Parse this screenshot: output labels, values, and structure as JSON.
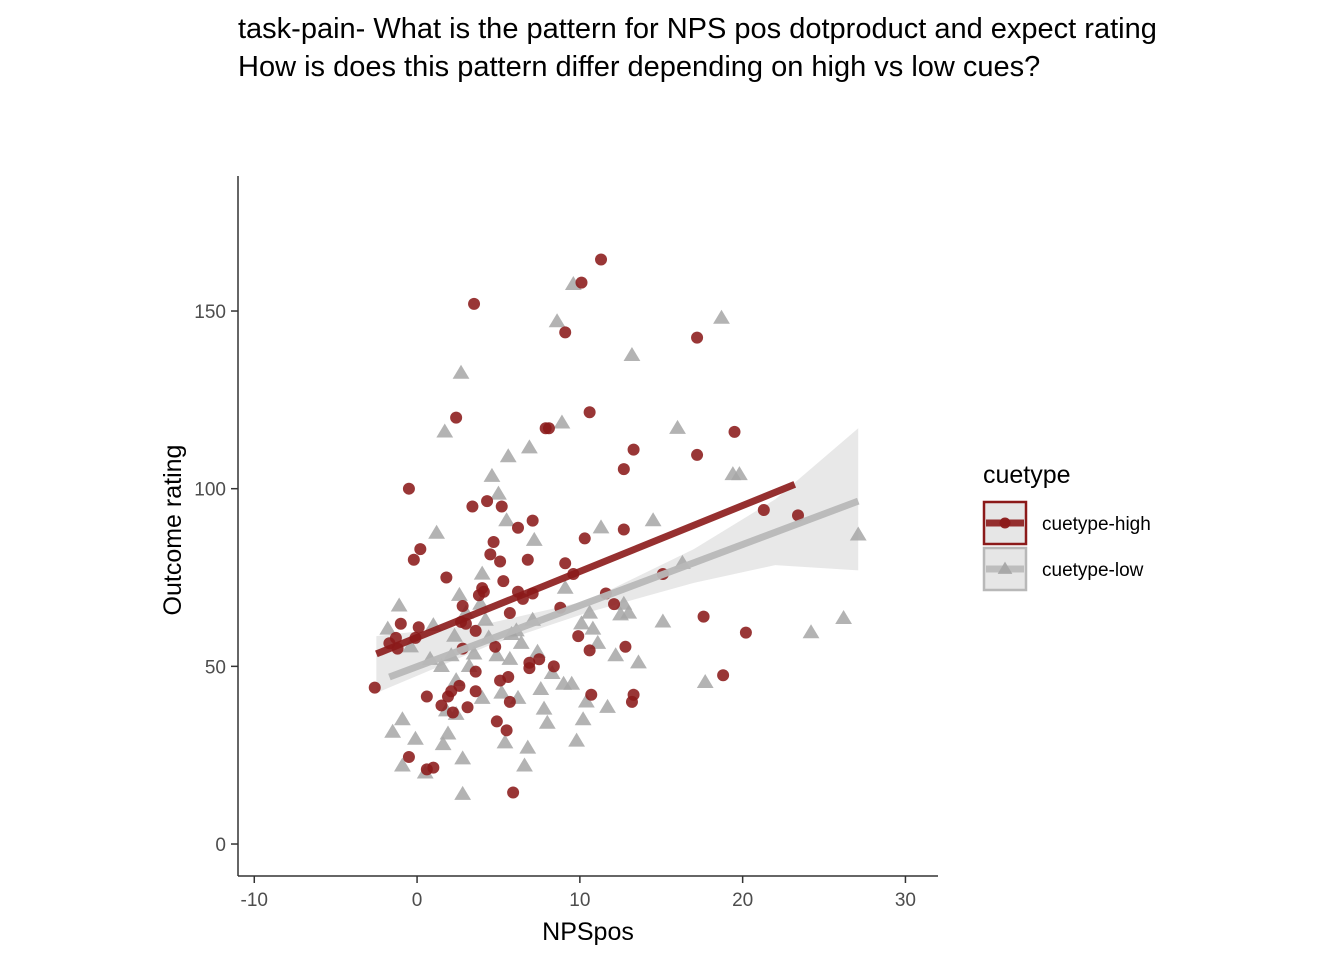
{
  "title_lines": [
    "task-pain- What is the pattern for NPS pos dotproduct and expect rating",
    "How is does this pattern differ depending on high vs low cues?"
  ],
  "chart_data": {
    "type": "scatter",
    "xlabel": "NPSpos",
    "ylabel": "Outcome rating",
    "xlim": [
      -11,
      32
    ],
    "ylim": [
      -9,
      188
    ],
    "xticks": [
      -10,
      0,
      10,
      20,
      30
    ],
    "yticks": [
      0,
      50,
      100,
      150
    ],
    "xtick_labels": [
      "-10",
      "0",
      "10",
      "20",
      "30"
    ],
    "ytick_labels": [
      "0",
      "50",
      "100",
      "150"
    ],
    "grid": false,
    "legend": {
      "title": "cuetype",
      "position": "right",
      "entries": [
        "cuetype-high",
        "cuetype-low"
      ]
    },
    "series": [
      {
        "name": "cuetype-high",
        "marker": "circle",
        "color": "#8B1A1A",
        "trend": {
          "x": [
            -2.5,
            23.2
          ],
          "y": [
            53.5,
            101.2
          ]
        },
        "points": [
          [
            -2.6,
            44
          ],
          [
            -1.7,
            56.5
          ],
          [
            -1.3,
            58
          ],
          [
            -1.2,
            55
          ],
          [
            -1.0,
            62
          ],
          [
            -0.5,
            100
          ],
          [
            -0.5,
            24.5
          ],
          [
            -0.2,
            80
          ],
          [
            -0.1,
            58
          ],
          [
            0.1,
            61
          ],
          [
            0.2,
            83
          ],
          [
            0.6,
            41.5
          ],
          [
            0.6,
            21
          ],
          [
            1.0,
            21.5
          ],
          [
            1.5,
            39
          ],
          [
            1.8,
            75
          ],
          [
            1.9,
            41.5
          ],
          [
            2.1,
            43
          ],
          [
            2.2,
            37
          ],
          [
            2.4,
            120
          ],
          [
            2.6,
            44.5
          ],
          [
            2.7,
            62.5
          ],
          [
            2.8,
            67
          ],
          [
            2.8,
            55
          ],
          [
            3.0,
            62
          ],
          [
            3.1,
            38.5
          ],
          [
            3.4,
            95
          ],
          [
            3.5,
            152
          ],
          [
            3.6,
            48.5
          ],
          [
            3.6,
            60
          ],
          [
            3.6,
            43
          ],
          [
            3.8,
            70
          ],
          [
            4.0,
            72
          ],
          [
            4.1,
            71
          ],
          [
            4.3,
            96.5
          ],
          [
            4.5,
            81.5
          ],
          [
            4.7,
            85
          ],
          [
            4.8,
            55.5
          ],
          [
            4.9,
            34.5
          ],
          [
            5.1,
            79.5
          ],
          [
            5.1,
            46
          ],
          [
            5.2,
            95
          ],
          [
            5.3,
            74
          ],
          [
            5.5,
            32
          ],
          [
            5.6,
            47
          ],
          [
            5.7,
            40
          ],
          [
            5.7,
            65
          ],
          [
            5.9,
            14.5
          ],
          [
            6.2,
            89
          ],
          [
            6.2,
            71
          ],
          [
            6.5,
            69
          ],
          [
            6.8,
            80
          ],
          [
            6.9,
            51
          ],
          [
            6.9,
            49.5
          ],
          [
            7.1,
            91
          ],
          [
            7.1,
            70.5
          ],
          [
            7.5,
            52
          ],
          [
            7.9,
            117
          ],
          [
            8.1,
            117
          ],
          [
            8.4,
            50
          ],
          [
            8.8,
            66.5
          ],
          [
            9.1,
            79
          ],
          [
            9.1,
            144
          ],
          [
            9.6,
            76
          ],
          [
            9.9,
            58.5
          ],
          [
            10.1,
            158
          ],
          [
            10.3,
            86
          ],
          [
            10.6,
            121.5
          ],
          [
            10.6,
            54.5
          ],
          [
            10.7,
            42
          ],
          [
            11.3,
            164.5
          ],
          [
            11.6,
            70.5
          ],
          [
            12.1,
            67.5
          ],
          [
            12.7,
            88.5
          ],
          [
            12.7,
            105.5
          ],
          [
            12.8,
            55.5
          ],
          [
            13.2,
            40
          ],
          [
            13.3,
            42
          ],
          [
            13.3,
            111
          ],
          [
            15.1,
            76
          ],
          [
            17.2,
            142.5
          ],
          [
            17.2,
            109.5
          ],
          [
            17.6,
            64
          ],
          [
            18.8,
            47.5
          ],
          [
            19.5,
            116
          ],
          [
            20.2,
            59.5
          ],
          [
            21.3,
            94
          ],
          [
            23.4,
            92.5
          ]
        ]
      },
      {
        "name": "cuetype-low",
        "marker": "triangle",
        "color": "#A6A6A6",
        "trend": {
          "x": [
            -1.7,
            27.1
          ],
          "y": [
            47,
            96.5
          ]
        },
        "ci_band": {
          "x": [
            -2.5,
            4.5,
            10.5,
            17,
            22,
            27.1
          ],
          "lower": [
            42.5,
            56,
            65.2,
            73.5,
            78.5,
            77
          ],
          "upper": [
            58.5,
            62.2,
            68.5,
            83,
            97,
            117
          ]
        },
        "points": [
          [
            -1.8,
            60.5
          ],
          [
            -1.5,
            31.5
          ],
          [
            -1.1,
            67
          ],
          [
            -0.9,
            22
          ],
          [
            -0.9,
            35
          ],
          [
            -0.4,
            55.5
          ],
          [
            -0.1,
            29.5
          ],
          [
            0.5,
            20
          ],
          [
            0.8,
            52
          ],
          [
            1.0,
            61.5
          ],
          [
            1.2,
            87.5
          ],
          [
            1.5,
            50
          ],
          [
            1.6,
            28
          ],
          [
            1.7,
            116
          ],
          [
            1.8,
            37.5
          ],
          [
            1.9,
            31
          ],
          [
            2.1,
            53
          ],
          [
            2.3,
            58.5
          ],
          [
            2.4,
            36.5
          ],
          [
            2.4,
            46
          ],
          [
            2.6,
            70
          ],
          [
            2.7,
            132.5
          ],
          [
            2.8,
            24
          ],
          [
            2.8,
            14
          ],
          [
            3.0,
            65
          ],
          [
            3.2,
            50
          ],
          [
            3.5,
            53.5
          ],
          [
            3.9,
            67.5
          ],
          [
            4.0,
            41
          ],
          [
            4.0,
            76
          ],
          [
            4.2,
            63
          ],
          [
            4.4,
            58
          ],
          [
            4.6,
            103.5
          ],
          [
            4.9,
            53
          ],
          [
            5.0,
            98.5
          ],
          [
            5.2,
            42.5
          ],
          [
            5.4,
            28.5
          ],
          [
            5.5,
            91
          ],
          [
            5.6,
            109
          ],
          [
            5.7,
            52
          ],
          [
            5.8,
            59
          ],
          [
            6.1,
            60
          ],
          [
            6.2,
            41
          ],
          [
            6.4,
            56.5
          ],
          [
            6.6,
            22
          ],
          [
            6.8,
            27
          ],
          [
            6.9,
            111.5
          ],
          [
            7.1,
            63
          ],
          [
            7.2,
            85.5
          ],
          [
            7.4,
            54
          ],
          [
            7.6,
            43.5
          ],
          [
            7.8,
            38
          ],
          [
            8.0,
            34
          ],
          [
            8.3,
            48
          ],
          [
            8.6,
            147
          ],
          [
            8.9,
            118.5
          ],
          [
            9.0,
            45
          ],
          [
            9.1,
            72
          ],
          [
            9.5,
            45
          ],
          [
            9.6,
            157.5
          ],
          [
            9.8,
            29
          ],
          [
            10.1,
            62
          ],
          [
            10.2,
            35
          ],
          [
            10.4,
            40
          ],
          [
            10.6,
            65
          ],
          [
            10.8,
            60.5
          ],
          [
            11.1,
            56.5
          ],
          [
            11.3,
            89
          ],
          [
            11.7,
            38.5
          ],
          [
            12.2,
            53
          ],
          [
            12.5,
            64.5
          ],
          [
            12.7,
            67.5
          ],
          [
            13.0,
            65
          ],
          [
            13.2,
            137.5
          ],
          [
            13.6,
            51
          ],
          [
            14.5,
            91
          ],
          [
            15.1,
            62.5
          ],
          [
            16.0,
            117
          ],
          [
            16.3,
            79
          ],
          [
            17.7,
            45.5
          ],
          [
            18.7,
            148
          ],
          [
            19.4,
            104
          ],
          [
            19.8,
            104
          ],
          [
            24.2,
            59.5
          ],
          [
            26.2,
            63.5
          ],
          [
            27.1,
            87
          ]
        ]
      }
    ]
  }
}
